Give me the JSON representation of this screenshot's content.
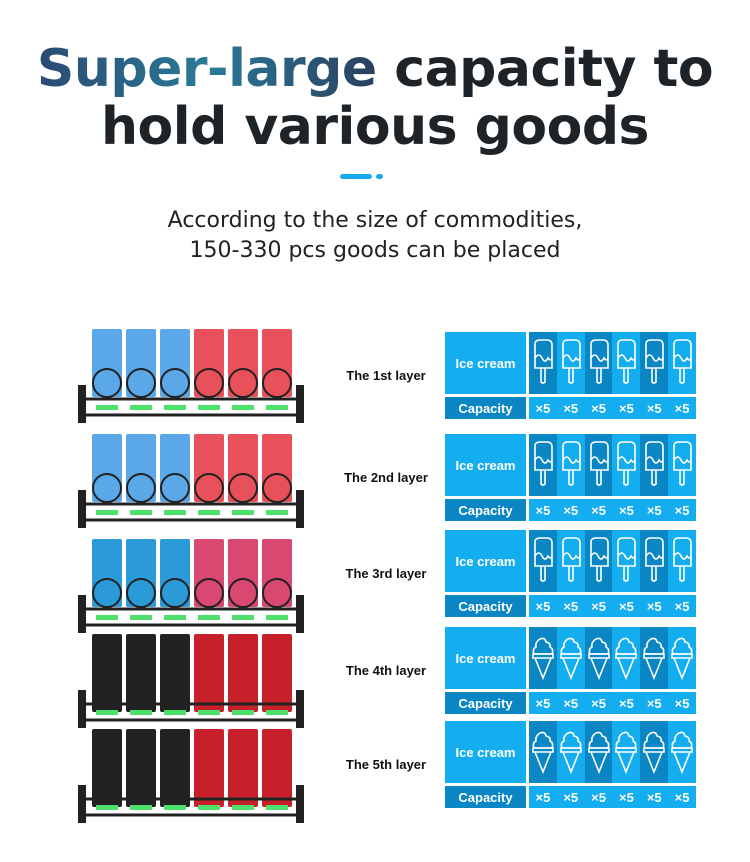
{
  "heading": {
    "line1_accent": "Super-large",
    "line1_rest": " capacity to",
    "line2": "hold various goods"
  },
  "subtitle": {
    "line1": "According to the size of commodities,",
    "line2": "150-330 pcs goods can be placed"
  },
  "colors": {
    "light_blue": "#14aef0",
    "dark_blue": "#0b86c4",
    "accent": "#19a9f0"
  },
  "layers": [
    {
      "label": "The 1st layer",
      "product": "Ice cream",
      "icon": "popsicle-icon",
      "capacity_label": "Capacity",
      "capacities": [
        "×5",
        "×5",
        "×5",
        "×5",
        "×5",
        "×5"
      ]
    },
    {
      "label": "The 2nd layer",
      "product": "Ice cream",
      "icon": "popsicle-icon",
      "capacity_label": "Capacity",
      "capacities": [
        "×5",
        "×5",
        "×5",
        "×5",
        "×5",
        "×5"
      ]
    },
    {
      "label": "The 3rd layer",
      "product": "Ice cream",
      "icon": "popsicle-icon",
      "capacity_label": "Capacity",
      "capacities": [
        "×5",
        "×5",
        "×5",
        "×5",
        "×5",
        "×5"
      ]
    },
    {
      "label": "The 4th layer",
      "product": "Ice cream",
      "icon": "cone-icon",
      "capacity_label": "Capacity",
      "capacities": [
        "×5",
        "×5",
        "×5",
        "×5",
        "×5",
        "×5"
      ]
    },
    {
      "label": "The 5th layer",
      "product": "Ice cream",
      "icon": "cone-icon",
      "capacity_label": "Capacity",
      "capacities": [
        "×5",
        "×5",
        "×5",
        "×5",
        "×5",
        "×5"
      ]
    }
  ]
}
